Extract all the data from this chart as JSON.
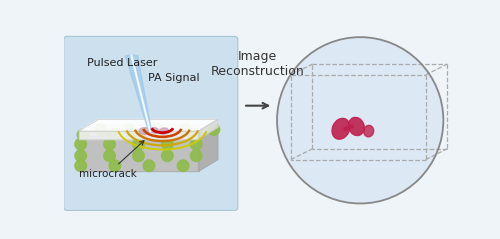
{
  "bg_color": "#eef4f8",
  "left_panel_bg": "#cce0ee",
  "slab_top_color": "#e8e8e8",
  "slab_side_color": "#c0c0c0",
  "slab_bottom_color": "#b8b8b8",
  "green_dot_color": "#8fbc4a",
  "pink_crack_color": "#c8a0b8",
  "laser_blue": "#7ab8e8",
  "pa_colors": [
    "#cc0000",
    "#cc4400",
    "#cc7700",
    "#ccaa00",
    "#cccc00"
  ],
  "circle_panel_bg": "#dce8f4",
  "circle_edge_color": "#888888",
  "dashed_box_color": "#aaaaaa",
  "recon_dot_color": "#bbbbbb",
  "crack_recon_color": "#c02050",
  "arrow_color": "#555555",
  "title_text": "Image\nReconstruction",
  "label_pulsed_laser": "Pulsed Laser",
  "label_pa_signal": "PA Signal",
  "label_microcrack": "microcrack",
  "title_fontsize": 9,
  "label_fontsize": 8
}
